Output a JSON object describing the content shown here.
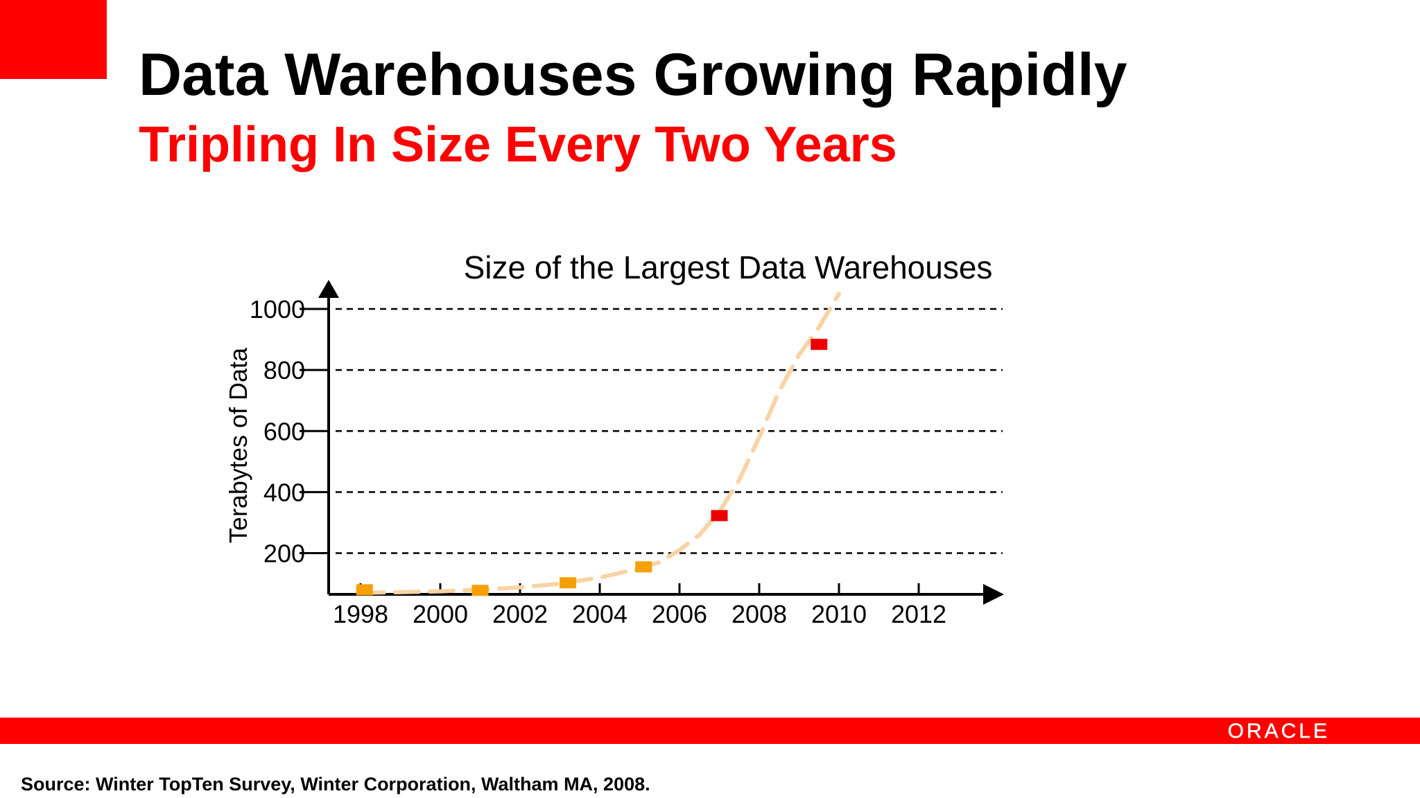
{
  "slide": {
    "title": "Data Warehouses Growing Rapidly",
    "subtitle": "Tripling In Size Every Two Years",
    "logo_text": "ORACLE",
    "source": "Source: Winter TopTen Survey, Winter Corporation, Waltham MA, 2008."
  },
  "colors": {
    "brand_red": "#ff0000",
    "marker_orange": "#f5a000",
    "marker_red": "#ee0000",
    "trend_line": "#f8d3a3"
  },
  "chart_data": {
    "type": "scatter",
    "title": "Size of the Largest Data Warehouses",
    "xlabel": "",
    "ylabel": "Terabytes of Data",
    "xlim": [
      1997.2,
      2014.0
    ],
    "ylim": [
      65,
      1100
    ],
    "x_ticks": [
      "1998",
      "2000",
      "2002",
      "2004",
      "2006",
      "2008",
      "2010",
      "2012"
    ],
    "y_ticks": [
      "1000",
      "800",
      "600",
      "400",
      "200"
    ],
    "grid": true,
    "legend": "none",
    "series": [
      {
        "points": [
          {
            "x": 1998.1,
            "y": 80,
            "color": "orange"
          },
          {
            "x": 2001.0,
            "y": 78,
            "color": "orange"
          },
          {
            "x": 2003.2,
            "y": 103,
            "color": "orange"
          },
          {
            "x": 2005.1,
            "y": 155,
            "color": "orange"
          },
          {
            "x": 2007.0,
            "y": 323,
            "color": "red"
          },
          {
            "x": 2009.5,
            "y": 884,
            "color": "red"
          }
        ]
      }
    ],
    "trendline": {
      "style": "dashed",
      "points": [
        [
          1998.0,
          70
        ],
        [
          1999.0,
          72
        ],
        [
          2000.0,
          75
        ],
        [
          2001.0,
          80
        ],
        [
          2002.0,
          88
        ],
        [
          2003.0,
          100
        ],
        [
          2004.0,
          120
        ],
        [
          2005.0,
          150
        ],
        [
          2005.5,
          170
        ],
        [
          2006.0,
          210
        ],
        [
          2006.5,
          260
        ],
        [
          2007.0,
          335
        ],
        [
          2007.5,
          440
        ],
        [
          2008.0,
          580
        ],
        [
          2008.5,
          730
        ],
        [
          2009.0,
          850
        ],
        [
          2009.5,
          940
        ],
        [
          2010.0,
          1050
        ]
      ]
    }
  }
}
